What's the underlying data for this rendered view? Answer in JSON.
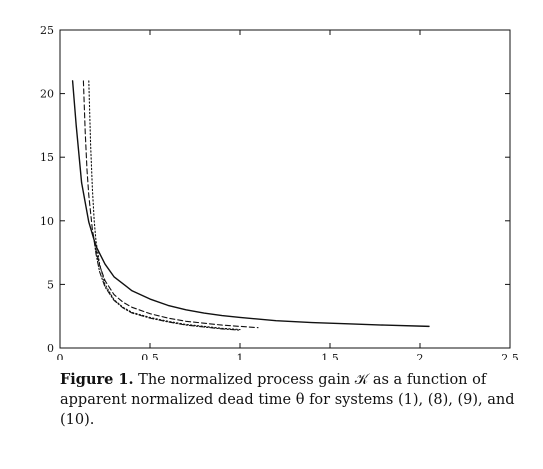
{
  "chart_data": {
    "type": "line",
    "title": "",
    "xlabel": "",
    "ylabel": "",
    "xlim": [
      0,
      2.5
    ],
    "ylim": [
      0,
      25
    ],
    "x_ticks": [
      0,
      0.5,
      1,
      1.5,
      2,
      2.5
    ],
    "x_tick_labels": [
      "0",
      "0.5",
      "1",
      "1.5",
      "2",
      "2.5"
    ],
    "y_ticks": [
      0,
      5,
      10,
      15,
      20,
      25
    ],
    "y_tick_labels": [
      "0",
      "5",
      "10",
      "15",
      "20",
      "25"
    ],
    "grid": false,
    "legend": "none",
    "series": [
      {
        "style": "solid",
        "x": [
          0.07,
          0.09,
          0.12,
          0.16,
          0.2,
          0.25,
          0.3,
          0.4,
          0.5,
          0.6,
          0.7,
          0.8,
          0.9,
          1.0,
          1.2,
          1.4,
          1.6,
          1.8,
          2.05
        ],
        "y": [
          21.0,
          17.5,
          13.0,
          9.9,
          8.0,
          6.6,
          5.6,
          4.5,
          3.85,
          3.35,
          3.0,
          2.75,
          2.55,
          2.4,
          2.15,
          2.0,
          1.9,
          1.8,
          1.7
        ]
      },
      {
        "style": "dashed",
        "x": [
          0.13,
          0.14,
          0.15,
          0.16,
          0.18,
          0.2,
          0.22,
          0.25,
          0.3,
          0.35,
          0.4,
          0.5,
          0.6,
          0.7,
          0.8,
          0.9,
          1.0,
          1.1
        ],
        "y": [
          21.0,
          17.0,
          14.0,
          12.0,
          9.3,
          7.7,
          6.5,
          5.3,
          4.2,
          3.6,
          3.2,
          2.7,
          2.35,
          2.1,
          1.95,
          1.8,
          1.7,
          1.6
        ]
      },
      {
        "style": "dotted",
        "x": [
          0.16,
          0.165,
          0.17,
          0.18,
          0.19,
          0.2,
          0.22,
          0.25,
          0.3,
          0.35,
          0.4,
          0.5,
          0.6,
          0.7,
          0.8,
          0.9,
          1.0
        ],
        "y": [
          21.0,
          18.5,
          16.0,
          12.5,
          10.0,
          8.4,
          6.6,
          5.0,
          3.8,
          3.2,
          2.8,
          2.4,
          2.1,
          1.85,
          1.7,
          1.55,
          1.45
        ]
      },
      {
        "style": "dashdot",
        "x": [
          0.19,
          0.2,
          0.22,
          0.25,
          0.3,
          0.35,
          0.4,
          0.5,
          0.6,
          0.7,
          0.8,
          0.9,
          1.0
        ],
        "y": [
          8.4,
          7.4,
          6.0,
          4.8,
          3.75,
          3.15,
          2.75,
          2.35,
          2.05,
          1.8,
          1.65,
          1.5,
          1.4
        ]
      }
    ]
  },
  "caption": {
    "label": "Figure 1.",
    "text": " The normalized process gain 𝒦 as a function of apparent normalized dead time θ for systems (1), (8), (9), and (10)."
  }
}
